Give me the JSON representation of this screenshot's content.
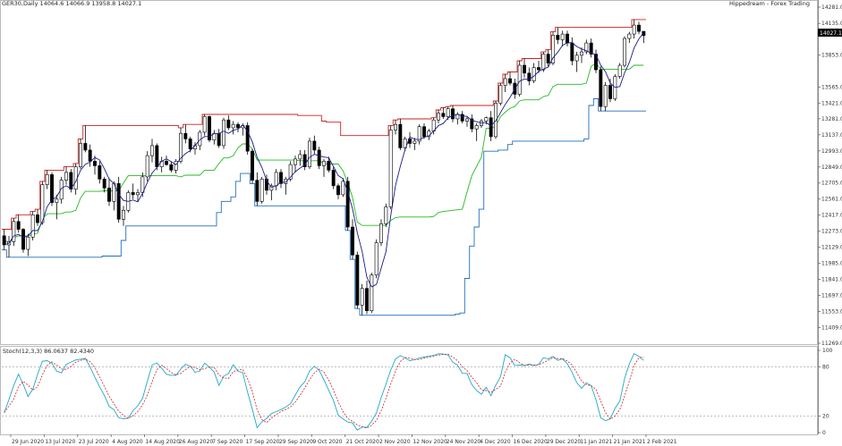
{
  "header": {
    "title": "GER30,Daily 14064.6 14066.9 13958.8 14027.1",
    "right_label": "Hippedream - Forex Trading"
  },
  "price_tag": "14027.1",
  "stoch_label": "Stoch(12,3,3) 86.0637 82.4340",
  "colors": {
    "bull": "#ffffff",
    "bear": "#000000",
    "upper_channel": "#cc2222",
    "lower_channel": "#1e6fc0",
    "mid_channel": "#22bb22",
    "ma": "#1a1a8a",
    "stoch_main": "#20a8c8",
    "stoch_signal": "#cc2222",
    "grid": "#999999"
  },
  "chart_data": [
    {
      "type": "candlestick",
      "x_tick_labels": [
        "29 Jun 2020",
        "13 Jul 2020",
        "23 Jul 2020",
        "4 Aug 2020",
        "14 Aug 2020",
        "26 Aug 2020",
        "7 Sep 2020",
        "17 Sep 2020",
        "29 Sep 2020",
        "9 Oct 2020",
        "21 Oct 2020",
        "2 Nov 2020",
        "12 Nov 2020",
        "24 Nov 2020",
        "4 Dec 2020",
        "16 Dec 2020",
        "29 Dec 2020",
        "11 Jan 2021",
        "21 Jan 2021",
        "2 Feb 2021"
      ],
      "y_tick_labels": [
        "14281.0",
        "14135.0",
        "13853.0",
        "13565.0",
        "13421.0",
        "13281.0",
        "13137.0",
        "12993.0",
        "12849.0",
        "12705.0",
        "12561.0",
        "12417.0",
        "12273.0",
        "12129.0",
        "11985.0",
        "11841.0",
        "11697.0",
        "11553.0",
        "11409.0",
        "11269.0"
      ],
      "ylim": [
        11269,
        14281
      ],
      "ohlc": [
        [
          12232,
          12290,
          12105,
          12150
        ],
        [
          12150,
          12230,
          12040,
          12180
        ],
        [
          12180,
          12390,
          12140,
          12360
        ],
        [
          12360,
          12420,
          12260,
          12290
        ],
        [
          12290,
          12300,
          12080,
          12110
        ],
        [
          12110,
          12250,
          12050,
          12220
        ],
        [
          12220,
          12450,
          12190,
          12420
        ],
        [
          12420,
          12470,
          12320,
          12350
        ],
        [
          12350,
          12720,
          12330,
          12690
        ],
        [
          12690,
          12820,
          12650,
          12780
        ],
        [
          12780,
          12800,
          12500,
          12530
        ],
        [
          12530,
          12600,
          12380,
          12560
        ],
        [
          12560,
          12760,
          12520,
          12730
        ],
        [
          12730,
          12850,
          12690,
          12800
        ],
        [
          12800,
          12830,
          12620,
          12650
        ],
        [
          12650,
          12880,
          12600,
          12850
        ],
        [
          12850,
          13100,
          12830,
          13060
        ],
        [
          13060,
          13220,
          12980,
          13000
        ],
        [
          13000,
          13050,
          12850,
          12900
        ],
        [
          12900,
          12950,
          12780,
          12860
        ],
        [
          12860,
          12900,
          12700,
          12740
        ],
        [
          12740,
          12760,
          12620,
          12660
        ],
        [
          12660,
          12750,
          12500,
          12540
        ],
        [
          12540,
          12720,
          12460,
          12700
        ],
        [
          12700,
          12760,
          12350,
          12380
        ],
        [
          12380,
          12500,
          12320,
          12460
        ],
        [
          12460,
          12640,
          12440,
          12620
        ],
        [
          12620,
          12700,
          12560,
          12600
        ],
        [
          12600,
          12650,
          12540,
          12620
        ],
        [
          12620,
          12800,
          12580,
          12760
        ],
        [
          12760,
          12990,
          12720,
          12950
        ],
        [
          12950,
          13100,
          12890,
          13040
        ],
        [
          13040,
          13060,
          12820,
          12850
        ],
        [
          12850,
          12940,
          12800,
          12900
        ],
        [
          12900,
          12950,
          12860,
          12870
        ],
        [
          12870,
          12900,
          12800,
          12820
        ],
        [
          12820,
          12920,
          12790,
          12900
        ],
        [
          12900,
          13200,
          12880,
          13150
        ],
        [
          13150,
          13230,
          13060,
          13100
        ],
        [
          13100,
          13120,
          12980,
          13010
        ],
        [
          13010,
          13070,
          12960,
          13040
        ],
        [
          13040,
          13180,
          13000,
          13160
        ],
        [
          13160,
          13320,
          13130,
          13300
        ],
        [
          13300,
          13310,
          13070,
          13090
        ],
        [
          13090,
          13180,
          13050,
          13150
        ],
        [
          13150,
          13190,
          13020,
          13040
        ],
        [
          13040,
          13290,
          13010,
          13270
        ],
        [
          13270,
          13310,
          13180,
          13200
        ],
        [
          13200,
          13260,
          13140,
          13230
        ],
        [
          13230,
          13250,
          13160,
          13200
        ],
        [
          13200,
          13240,
          13130,
          13220
        ],
        [
          13220,
          13250,
          12960,
          12990
        ],
        [
          12990,
          13010,
          12700,
          12730
        ],
        [
          12730,
          12800,
          12500,
          12540
        ],
        [
          12540,
          12760,
          12520,
          12740
        ],
        [
          12740,
          12780,
          12600,
          12640
        ],
        [
          12640,
          12700,
          12550,
          12680
        ],
        [
          12680,
          12830,
          12640,
          12800
        ],
        [
          12800,
          12830,
          12660,
          12700
        ],
        [
          12700,
          12760,
          12600,
          12740
        ],
        [
          12740,
          12900,
          12720,
          12870
        ],
        [
          12870,
          12950,
          12800,
          12920
        ],
        [
          12920,
          13000,
          12860,
          12960
        ],
        [
          12960,
          13000,
          12820,
          12850
        ],
        [
          12850,
          13110,
          12830,
          13080
        ],
        [
          13080,
          13130,
          12960,
          13000
        ],
        [
          13000,
          13030,
          12830,
          12860
        ],
        [
          12860,
          12920,
          12760,
          12900
        ],
        [
          12900,
          12940,
          12800,
          12820
        ],
        [
          12820,
          12850,
          12650,
          12680
        ],
        [
          12680,
          12700,
          12560,
          12600
        ],
        [
          12600,
          12750,
          12580,
          12720
        ],
        [
          12720,
          12760,
          12280,
          12310
        ],
        [
          12310,
          12380,
          12020,
          12060
        ],
        [
          12060,
          12090,
          11580,
          11610
        ],
        [
          11610,
          11800,
          11520,
          11760
        ],
        [
          11760,
          11830,
          11530,
          11560
        ],
        [
          11560,
          11900,
          11540,
          11880
        ],
        [
          11880,
          12200,
          11850,
          12170
        ],
        [
          12170,
          12380,
          12140,
          12340
        ],
        [
          12340,
          12520,
          12310,
          12490
        ],
        [
          12490,
          13220,
          12470,
          13180
        ],
        [
          13180,
          13270,
          13140,
          13230
        ],
        [
          13230,
          13280,
          13000,
          13020
        ],
        [
          13020,
          13120,
          12990,
          13100
        ],
        [
          13100,
          13160,
          13020,
          13060
        ],
        [
          13060,
          13110,
          13000,
          13080
        ],
        [
          13080,
          13230,
          13050,
          13210
        ],
        [
          13210,
          13240,
          13100,
          13120
        ],
        [
          13120,
          13190,
          13090,
          13170
        ],
        [
          13170,
          13290,
          13140,
          13270
        ],
        [
          13270,
          13360,
          13240,
          13330
        ],
        [
          13330,
          13380,
          13280,
          13300
        ],
        [
          13300,
          13390,
          13270,
          13370
        ],
        [
          13370,
          13400,
          13250,
          13280
        ],
        [
          13280,
          13340,
          13230,
          13320
        ],
        [
          13320,
          13350,
          13240,
          13260
        ],
        [
          13260,
          13300,
          13210,
          13280
        ],
        [
          13280,
          13320,
          13160,
          13190
        ],
        [
          13190,
          13240,
          13080,
          13220
        ],
        [
          13220,
          13280,
          13200,
          13260
        ],
        [
          13260,
          13300,
          13230,
          13290
        ],
        [
          13290,
          13350,
          13080,
          13120
        ],
        [
          13120,
          13440,
          13100,
          13420
        ],
        [
          13420,
          13600,
          13400,
          13580
        ],
        [
          13580,
          13680,
          13520,
          13640
        ],
        [
          13640,
          13700,
          13580,
          13600
        ],
        [
          13600,
          13640,
          13460,
          13500
        ],
        [
          13500,
          13800,
          13480,
          13760
        ],
        [
          13760,
          13820,
          13650,
          13690
        ],
        [
          13690,
          13740,
          13580,
          13620
        ],
        [
          13620,
          13780,
          13600,
          13740
        ],
        [
          13740,
          13800,
          13690,
          13720
        ],
        [
          13720,
          13880,
          13700,
          13860
        ],
        [
          13860,
          13900,
          13740,
          13780
        ],
        [
          13780,
          14060,
          13760,
          14030
        ],
        [
          14030,
          14100,
          13950,
          13990
        ],
        [
          13990,
          14070,
          13930,
          14040
        ],
        [
          14040,
          14070,
          13930,
          13960
        ],
        [
          13960,
          14010,
          13760,
          13800
        ],
        [
          13800,
          13880,
          13700,
          13850
        ],
        [
          13850,
          13920,
          13780,
          13880
        ],
        [
          13880,
          13990,
          13860,
          13960
        ],
        [
          13960,
          14000,
          13830,
          13860
        ],
        [
          13860,
          13900,
          13690,
          13720
        ],
        [
          13720,
          13750,
          13350,
          13390
        ],
        [
          13390,
          13610,
          13350,
          13580
        ],
        [
          13580,
          13640,
          13430,
          13460
        ],
        [
          13460,
          13680,
          13440,
          13660
        ],
        [
          13660,
          13780,
          13640,
          13760
        ],
        [
          13760,
          14020,
          13740,
          14000
        ],
        [
          14000,
          14060,
          13960,
          14040
        ],
        [
          14040,
          14170,
          14000,
          14120
        ],
        [
          14120,
          14150,
          14040,
          14064
        ],
        [
          14064,
          14067,
          13959,
          14027
        ]
      ]
    },
    {
      "type": "line",
      "title": "Stoch(12,3,3) 86.0637 82.4340",
      "y_tick_labels": [
        "100",
        "80",
        "20",
        "0"
      ],
      "ylim": [
        0,
        100
      ],
      "levels": [
        80,
        20
      ]
    }
  ]
}
